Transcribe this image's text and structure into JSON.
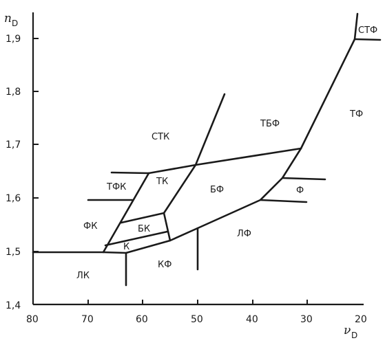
{
  "axes": {
    "y_label": "n",
    "y_label_sub": "D",
    "x_label": "ν",
    "x_label_sub": "D",
    "y_ticks": [
      "1,4",
      "1,5",
      "1,6",
      "1,7",
      "1,8",
      "1,9"
    ],
    "x_ticks": [
      "80",
      "70",
      "60",
      "50",
      "40",
      "30",
      "20"
    ]
  },
  "regions": [
    {
      "key": "stf",
      "label": "СТФ"
    },
    {
      "key": "tf",
      "label": "ТФ"
    },
    {
      "key": "tbf",
      "label": "ТБФ"
    },
    {
      "key": "stk",
      "label": "СТК"
    },
    {
      "key": "tfk",
      "label": "ТФК"
    },
    {
      "key": "tk",
      "label": "ТК"
    },
    {
      "key": "bf",
      "label": "БФ"
    },
    {
      "key": "f",
      "label": "Ф"
    },
    {
      "key": "fk",
      "label": "ФК"
    },
    {
      "key": "bk",
      "label": "БК"
    },
    {
      "key": "k",
      "label": "К"
    },
    {
      "key": "lf",
      "label": "ЛФ"
    },
    {
      "key": "kf",
      "label": "КФ"
    },
    {
      "key": "lk",
      "label": "ЛК"
    }
  ]
}
